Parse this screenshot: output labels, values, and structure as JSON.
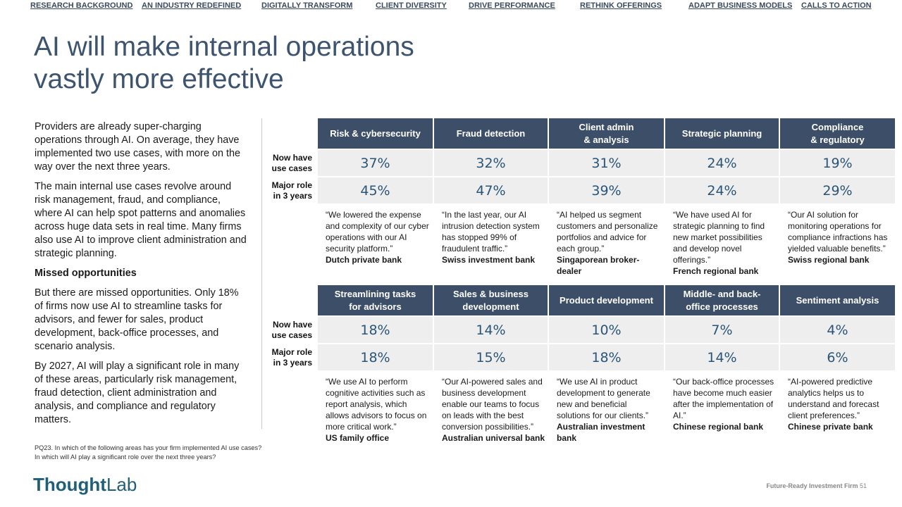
{
  "nav": [
    "RESEARCH BACKGROUND",
    "AN INDUSTRY REDEFINED",
    "DIGITALLY TRANSFORM",
    "CLIENT DIVERSITY",
    "DRIVE PERFORMANCE",
    "RETHINK OFFERINGS",
    "ADAPT BUSINESS MODELS",
    "CALLS TO ACTION"
  ],
  "title": "AI will make internal operations vastly more effective",
  "intro": {
    "p1": "Providers are already super-charging operations through AI. On average, they have implemented two use cases, with more on the way over the next three years.",
    "p2": "The main internal use cases revolve around risk management, fraud, and compliance, where AI can help spot patterns and anomalies across huge data sets in real time. Many firms also use AI to improve client administration and strategic planning.",
    "subhead": "Missed opportunities",
    "p3": "But there are missed opportunities. Only 18% of firms now use AI to streamline tasks for advisors, and fewer for sales, product development, back-office processes, and scenario analysis.",
    "p4": "By 2027, AI will play a significant role in many of these areas, particularly risk management, fraud detection, client administration and analysis, and compliance and regulatory matters."
  },
  "footnote": {
    "line1": "PQ23. In which of the following areas has your firm implemented AI use cases?",
    "line2": "In which will AI play a significant role over the next three years?"
  },
  "row_labels": {
    "now_1": "Now have",
    "now_2": "use cases",
    "major_1": "Major role",
    "major_2": "in 3 years"
  },
  "blocks": [
    {
      "headers": [
        [
          "Risk & cybersecurity"
        ],
        [
          "Fraud detection"
        ],
        [
          "Client admin",
          "& analysis"
        ],
        [
          "Strategic planning"
        ],
        [
          "Compliance",
          "& regulatory"
        ]
      ],
      "now": [
        "37%",
        "32%",
        "31%",
        "24%",
        "19%"
      ],
      "major": [
        "45%",
        "47%",
        "39%",
        "24%",
        "29%"
      ],
      "quotes": [
        {
          "text": "“We lowered the expense and complexity of our cyber operations with our AI security platform.”",
          "source": "Dutch private bank"
        },
        {
          "text": "“In the last year, our AI intrusion detection system has stopped 99% of fraudulent traffic.”",
          "source": "Swiss investment bank"
        },
        {
          "text": "“AI helped us segment customers and personalize portfolios and advice for each group.”",
          "source": "Singaporean broker-dealer"
        },
        {
          "text": "“We have used AI for strategic planning to find new market possibilities and develop novel offerings.”",
          "source": "French regional bank"
        },
        {
          "text": "“Our AI solution for monitoring operations for compliance infractions has yielded valuable benefits.”",
          "source": "Swiss regional bank"
        }
      ]
    },
    {
      "headers": [
        [
          "Streamlining tasks",
          "for advisors"
        ],
        [
          "Sales & business",
          "development"
        ],
        [
          "Product development"
        ],
        [
          "Middle- and back-",
          "office processes"
        ],
        [
          "Sentiment analysis"
        ]
      ],
      "now": [
        "18%",
        "14%",
        "10%",
        "7%",
        "4%"
      ],
      "major": [
        "18%",
        "15%",
        "18%",
        "14%",
        "6%"
      ],
      "quotes": [
        {
          "text": "“We use AI to perform cognitive activities such as report analysis, which allows advisors to focus on more critical work.”",
          "source": "US family office"
        },
        {
          "text": "“Our AI-powered sales and business development enable our teams to focus on leads with the best conversion possibilities.”",
          "source": "Australian universal bank"
        },
        {
          "text": "“We use AI in product development to generate new and beneficial solutions for our clients.”",
          "source": "Australian investment bank"
        },
        {
          "text": "“Our back-office processes have become much easier after the implementation of AI.”",
          "source": "Chinese regional bank"
        },
        {
          "text": "“AI-powered predictive analytics helps us to understand and forecast client preferences.”",
          "source": "Chinese private bank"
        }
      ]
    }
  ],
  "logo": {
    "part1": "Thought",
    "part2": "Lab"
  },
  "footer": {
    "label": "Future-Ready Investment Firm",
    "page": "51"
  },
  "colors": {
    "header_bg": "#3d4f68",
    "value_text": "#2a5578",
    "title": "#3d5470",
    "cell_bg": "#eeeeee"
  }
}
